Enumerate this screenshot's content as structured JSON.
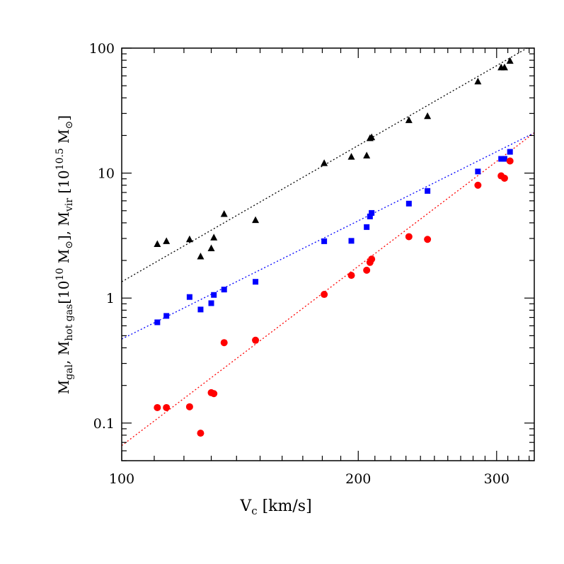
{
  "chart_data": {
    "type": "scatter",
    "x_scale": "log",
    "y_scale": "log",
    "xlim": [
      100,
      335
    ],
    "ylim": [
      0.05,
      100
    ],
    "x_ticks": [
      100,
      200,
      300
    ],
    "x_tick_labels": [
      "100",
      "200",
      "300"
    ],
    "y_ticks": [
      0.1,
      1,
      10,
      100
    ],
    "y_tick_labels": [
      "0.1",
      "1",
      "10",
      "100"
    ],
    "xlabel": {
      "main": "V",
      "sub": "c",
      "rest": " [km/s]"
    },
    "ylabel": {
      "p1": "M",
      "p1sub": "gal",
      "p2": ",  M",
      "p2sub": "hot gas",
      "p3": "[10",
      "p3sup": "10",
      "p4": " M",
      "p4sub": "⊙",
      "p5": "],  M",
      "p5sub": "vir",
      "p6": "  [10",
      "p6sup": "10.5",
      "p7": " M",
      "p7sub": "⊙",
      "p8": "]"
    },
    "grid": false,
    "series": [
      {
        "marker": "triangle",
        "color": "#000000",
        "fit": {
          "color": "#000000",
          "at_x_min": 1.35,
          "at_x_max": 108
        },
        "points": [
          [
            111,
            2.7
          ],
          [
            114,
            2.85
          ],
          [
            122,
            2.95
          ],
          [
            126,
            2.15
          ],
          [
            130,
            2.5
          ],
          [
            131,
            3.05
          ],
          [
            135,
            4.7
          ],
          [
            148,
            4.2
          ],
          [
            181,
            12.0
          ],
          [
            196,
            13.5
          ],
          [
            205,
            13.8
          ],
          [
            207,
            19.0
          ],
          [
            208,
            19.3
          ],
          [
            232,
            26.5
          ],
          [
            245,
            28.5
          ],
          [
            284,
            54.0
          ],
          [
            304,
            70.0
          ],
          [
            307,
            70.0
          ],
          [
            312,
            79.0
          ]
        ]
      },
      {
        "marker": "square",
        "color": "#0000ff",
        "fit": {
          "color": "#0000ff",
          "at_x_min": 0.47,
          "at_x_max": 21
        },
        "points": [
          [
            111,
            0.64
          ],
          [
            114,
            0.72
          ],
          [
            122,
            1.02
          ],
          [
            126,
            0.81
          ],
          [
            130,
            0.91
          ],
          [
            131,
            1.06
          ],
          [
            135,
            1.17
          ],
          [
            148,
            1.35
          ],
          [
            181,
            2.85
          ],
          [
            196,
            2.87
          ],
          [
            205,
            3.7
          ],
          [
            207,
            4.5
          ],
          [
            208,
            4.8
          ],
          [
            232,
            5.7
          ],
          [
            245,
            7.2
          ],
          [
            284,
            10.3
          ],
          [
            304,
            13.0
          ],
          [
            307,
            13.0
          ],
          [
            312,
            14.8
          ]
        ]
      },
      {
        "marker": "circle",
        "color": "#ff0000",
        "fit": {
          "color": "#ff0000",
          "at_x_min": 0.066,
          "at_x_max": 21
        },
        "points": [
          [
            111,
            0.133
          ],
          [
            114,
            0.133
          ],
          [
            122,
            0.135
          ],
          [
            126,
            0.083
          ],
          [
            130,
            0.175
          ],
          [
            131,
            0.172
          ],
          [
            135,
            0.44
          ],
          [
            148,
            0.46
          ],
          [
            181,
            1.07
          ],
          [
            196,
            1.52
          ],
          [
            205,
            1.67
          ],
          [
            207,
            1.93
          ],
          [
            208,
            2.05
          ],
          [
            232,
            3.1
          ],
          [
            245,
            2.95
          ],
          [
            284,
            8.0
          ],
          [
            304,
            9.5
          ],
          [
            307,
            9.1
          ],
          [
            312,
            12.5
          ]
        ]
      }
    ]
  }
}
